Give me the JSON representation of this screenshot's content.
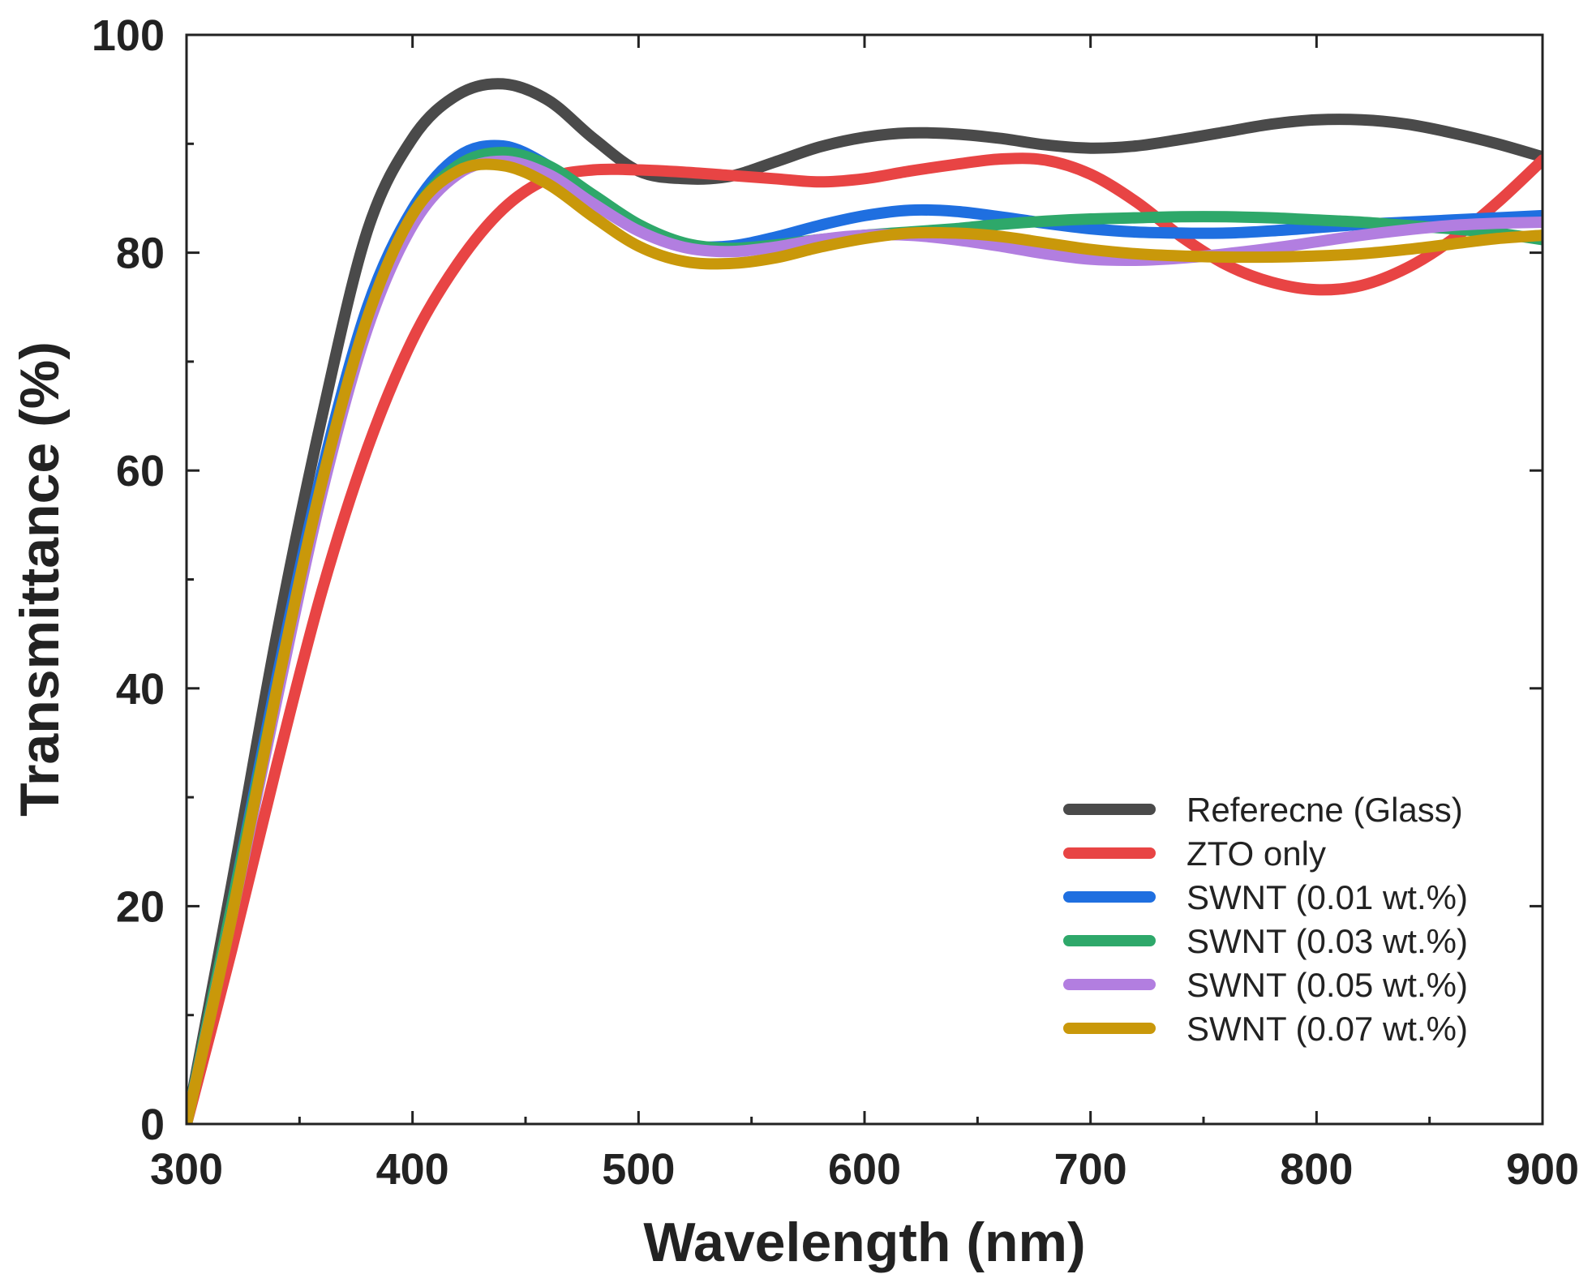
{
  "chart_data": {
    "type": "line",
    "title": "",
    "xlabel": "Wavelength (nm)",
    "ylabel": "Transmittance (%)",
    "xlim": [
      300,
      900
    ],
    "ylim": [
      0,
      100
    ],
    "x_ticks": [
      300,
      400,
      500,
      600,
      700,
      800,
      900
    ],
    "y_ticks": [
      0,
      20,
      40,
      60,
      80,
      100
    ],
    "x_minor_ticks": [
      350,
      450,
      550,
      650,
      750,
      850
    ],
    "y_minor_ticks": [
      10,
      30,
      50,
      70,
      90
    ],
    "x_tick_labels": [
      "300",
      "400",
      "500",
      "600",
      "700",
      "800",
      "900"
    ],
    "y_tick_labels": [
      "0",
      "20",
      "40",
      "60",
      "80",
      "100"
    ],
    "grid": false,
    "legend_position": "bottom-right",
    "series": [
      {
        "name": "Referecne (Glass)",
        "color": "#4a4a4a",
        "points": [
          [
            300,
            0
          ],
          [
            320,
            22
          ],
          [
            340,
            45
          ],
          [
            360,
            65
          ],
          [
            380,
            82
          ],
          [
            400,
            90.5
          ],
          [
            420,
            94.5
          ],
          [
            440,
            95.5
          ],
          [
            460,
            94
          ],
          [
            480,
            90.5
          ],
          [
            500,
            87.5
          ],
          [
            520,
            86.8
          ],
          [
            540,
            87
          ],
          [
            560,
            88.3
          ],
          [
            580,
            89.7
          ],
          [
            600,
            90.6
          ],
          [
            620,
            91
          ],
          [
            640,
            90.9
          ],
          [
            660,
            90.5
          ],
          [
            680,
            89.9
          ],
          [
            700,
            89.6
          ],
          [
            720,
            89.8
          ],
          [
            740,
            90.4
          ],
          [
            760,
            91.1
          ],
          [
            780,
            91.8
          ],
          [
            800,
            92.2
          ],
          [
            820,
            92.2
          ],
          [
            840,
            91.8
          ],
          [
            860,
            91
          ],
          [
            880,
            90
          ],
          [
            900,
            88.8
          ]
        ]
      },
      {
        "name": "ZTO only",
        "color": "#e84444",
        "points": [
          [
            300,
            0
          ],
          [
            320,
            16
          ],
          [
            340,
            33
          ],
          [
            360,
            49
          ],
          [
            380,
            62
          ],
          [
            400,
            72
          ],
          [
            420,
            79
          ],
          [
            440,
            84
          ],
          [
            460,
            86.8
          ],
          [
            480,
            87.6
          ],
          [
            500,
            87.6
          ],
          [
            520,
            87.4
          ],
          [
            540,
            87.1
          ],
          [
            560,
            86.8
          ],
          [
            580,
            86.5
          ],
          [
            600,
            86.8
          ],
          [
            620,
            87.5
          ],
          [
            640,
            88.1
          ],
          [
            660,
            88.6
          ],
          [
            680,
            88.5
          ],
          [
            700,
            87.2
          ],
          [
            720,
            84.7
          ],
          [
            740,
            81.5
          ],
          [
            760,
            78.9
          ],
          [
            780,
            77.3
          ],
          [
            800,
            76.6
          ],
          [
            820,
            77
          ],
          [
            840,
            78.6
          ],
          [
            860,
            81.2
          ],
          [
            880,
            84.6
          ],
          [
            900,
            88.5
          ]
        ]
      },
      {
        "name": "SWNT (0.01 wt.%)",
        "color": "#1f6fe0",
        "points": [
          [
            300,
            0
          ],
          [
            320,
            20
          ],
          [
            340,
            41
          ],
          [
            360,
            60
          ],
          [
            380,
            75
          ],
          [
            400,
            84
          ],
          [
            420,
            88.8
          ],
          [
            440,
            89.8
          ],
          [
            460,
            88
          ],
          [
            480,
            85
          ],
          [
            500,
            82.2
          ],
          [
            520,
            80.7
          ],
          [
            540,
            80.6
          ],
          [
            560,
            81.4
          ],
          [
            580,
            82.5
          ],
          [
            600,
            83.4
          ],
          [
            620,
            83.9
          ],
          [
            640,
            83.8
          ],
          [
            660,
            83.3
          ],
          [
            680,
            82.7
          ],
          [
            700,
            82.2
          ],
          [
            720,
            81.9
          ],
          [
            740,
            81.8
          ],
          [
            760,
            81.8
          ],
          [
            780,
            82
          ],
          [
            800,
            82.3
          ],
          [
            820,
            82.6
          ],
          [
            840,
            82.8
          ],
          [
            860,
            83
          ],
          [
            880,
            83.2
          ],
          [
            900,
            83.4
          ]
        ]
      },
      {
        "name": "SWNT (0.03 wt.%)",
        "color": "#2ea86a",
        "points": [
          [
            300,
            0
          ],
          [
            320,
            20
          ],
          [
            340,
            40
          ],
          [
            360,
            59
          ],
          [
            380,
            74
          ],
          [
            400,
            83.5
          ],
          [
            420,
            88
          ],
          [
            440,
            89.2
          ],
          [
            460,
            88
          ],
          [
            480,
            85.3
          ],
          [
            500,
            82.6
          ],
          [
            520,
            80.9
          ],
          [
            540,
            80.4
          ],
          [
            560,
            80.7
          ],
          [
            580,
            81.2
          ],
          [
            600,
            81.6
          ],
          [
            620,
            81.9
          ],
          [
            640,
            82.2
          ],
          [
            660,
            82.6
          ],
          [
            680,
            82.9
          ],
          [
            700,
            83.1
          ],
          [
            720,
            83.2
          ],
          [
            740,
            83.3
          ],
          [
            760,
            83.3
          ],
          [
            780,
            83.2
          ],
          [
            800,
            83
          ],
          [
            820,
            82.8
          ],
          [
            840,
            82.5
          ],
          [
            860,
            82.2
          ],
          [
            880,
            81.8
          ],
          [
            900,
            81.2
          ]
        ]
      },
      {
        "name": "SWNT (0.05 wt.%)",
        "color": "#b27ee0",
        "points": [
          [
            300,
            0
          ],
          [
            320,
            19
          ],
          [
            340,
            39
          ],
          [
            360,
            58
          ],
          [
            380,
            73
          ],
          [
            400,
            82.5
          ],
          [
            420,
            87.2
          ],
          [
            440,
            88.4
          ],
          [
            460,
            87.2
          ],
          [
            480,
            84.5
          ],
          [
            500,
            82
          ],
          [
            520,
            80.5
          ],
          [
            540,
            80.1
          ],
          [
            560,
            80.5
          ],
          [
            580,
            81.2
          ],
          [
            600,
            81.6
          ],
          [
            620,
            81.6
          ],
          [
            640,
            81.2
          ],
          [
            660,
            80.6
          ],
          [
            680,
            79.9
          ],
          [
            700,
            79.4
          ],
          [
            720,
            79.3
          ],
          [
            740,
            79.5
          ],
          [
            760,
            79.9
          ],
          [
            780,
            80.4
          ],
          [
            800,
            81
          ],
          [
            820,
            81.6
          ],
          [
            840,
            82.1
          ],
          [
            860,
            82.5
          ],
          [
            880,
            82.7
          ],
          [
            900,
            82.8
          ]
        ]
      },
      {
        "name": "SWNT (0.07 wt.%)",
        "color": "#c9980a",
        "points": [
          [
            300,
            0
          ],
          [
            320,
            19
          ],
          [
            340,
            40
          ],
          [
            360,
            59
          ],
          [
            380,
            74
          ],
          [
            400,
            83.5
          ],
          [
            420,
            87.5
          ],
          [
            440,
            88
          ],
          [
            460,
            86.3
          ],
          [
            480,
            83.3
          ],
          [
            500,
            80.6
          ],
          [
            520,
            79.2
          ],
          [
            540,
            79
          ],
          [
            560,
            79.5
          ],
          [
            580,
            80.5
          ],
          [
            600,
            81.3
          ],
          [
            620,
            81.8
          ],
          [
            640,
            81.8
          ],
          [
            660,
            81.5
          ],
          [
            680,
            80.9
          ],
          [
            700,
            80.3
          ],
          [
            720,
            79.9
          ],
          [
            740,
            79.7
          ],
          [
            760,
            79.6
          ],
          [
            780,
            79.6
          ],
          [
            800,
            79.7
          ],
          [
            820,
            79.9
          ],
          [
            840,
            80.3
          ],
          [
            860,
            80.8
          ],
          [
            880,
            81.3
          ],
          [
            900,
            81.6
          ]
        ]
      }
    ]
  }
}
